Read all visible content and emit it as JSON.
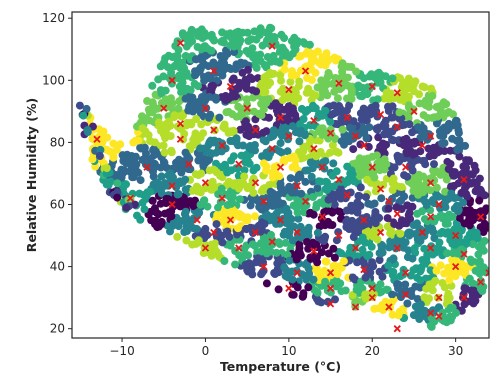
{
  "chart_data": {
    "type": "scatter",
    "title": "",
    "xlabel": "Temperature (°C)",
    "ylabel": "Relative Humidity (%)",
    "xlim": [
      -16,
      34
    ],
    "ylim": [
      17,
      122
    ],
    "xticks": [
      "−10",
      "0",
      "10",
      "20",
      "30"
    ],
    "yticks": [
      "20",
      "40",
      "60",
      "80",
      "100",
      "120"
    ],
    "xtick_values": [
      -10,
      0,
      10,
      20,
      30
    ],
    "ytick_values": [
      20,
      40,
      60,
      80,
      100,
      120
    ],
    "grid": false,
    "colormap": "viridis",
    "cluster_marker": "x",
    "cluster_marker_color": "#e41a1c",
    "point_cloud": {
      "description_hull_temperature": [
        -14,
        33
      ],
      "humidity_range": [
        20,
        118
      ],
      "left_tail": [
        [
          -14.5,
          90
        ],
        [
          -14,
          84
        ],
        [
          -13,
          76
        ],
        [
          -12,
          70
        ],
        [
          -11,
          65
        ],
        [
          -10,
          62
        ],
        [
          -9,
          60
        ]
      ]
    },
    "cluster_centers": [
      [
        -3,
        112
      ],
      [
        1,
        103
      ],
      [
        8,
        111
      ],
      [
        12,
        103
      ],
      [
        20,
        98
      ],
      [
        -4,
        100
      ],
      [
        3,
        98
      ],
      [
        10,
        97
      ],
      [
        16,
        99
      ],
      [
        23,
        96
      ],
      [
        -5,
        91
      ],
      [
        0,
        91
      ],
      [
        5,
        91
      ],
      [
        9,
        88
      ],
      [
        13,
        87
      ],
      [
        17,
        88
      ],
      [
        21,
        89
      ],
      [
        25,
        90
      ],
      [
        -3,
        86
      ],
      [
        1,
        84
      ],
      [
        6,
        84
      ],
      [
        10,
        82
      ],
      [
        15,
        83
      ],
      [
        18,
        82
      ],
      [
        23,
        85
      ],
      [
        27,
        82
      ],
      [
        -13,
        81
      ],
      [
        -3,
        81
      ],
      [
        2,
        79
      ],
      [
        8,
        78
      ],
      [
        13,
        78
      ],
      [
        19,
        79
      ],
      [
        26,
        79
      ],
      [
        -7,
        72
      ],
      [
        -2,
        73
      ],
      [
        4,
        73
      ],
      [
        9,
        72
      ],
      [
        14,
        72
      ],
      [
        20,
        72
      ],
      [
        24,
        72
      ],
      [
        -4,
        66
      ],
      [
        0,
        67
      ],
      [
        6,
        67
      ],
      [
        11,
        66
      ],
      [
        16,
        68
      ],
      [
        21,
        65
      ],
      [
        27,
        67
      ],
      [
        31,
        68
      ],
      [
        -9,
        62
      ],
      [
        -4,
        60
      ],
      [
        2,
        62
      ],
      [
        7,
        61
      ],
      [
        12,
        61
      ],
      [
        17,
        63
      ],
      [
        22,
        61
      ],
      [
        28,
        60
      ],
      [
        -1,
        55
      ],
      [
        3,
        55
      ],
      [
        9,
        55
      ],
      [
        14,
        56
      ],
      [
        19,
        55
      ],
      [
        23,
        57
      ],
      [
        27,
        56
      ],
      [
        33,
        56
      ],
      [
        1,
        51
      ],
      [
        6,
        51
      ],
      [
        11,
        51
      ],
      [
        16,
        50
      ],
      [
        21,
        51
      ],
      [
        26,
        51
      ],
      [
        30,
        50
      ],
      [
        0,
        46
      ],
      [
        4,
        46
      ],
      [
        8,
        48
      ],
      [
        13,
        45
      ],
      [
        18,
        46
      ],
      [
        23,
        46
      ],
      [
        27,
        46
      ],
      [
        31,
        44
      ],
      [
        7,
        40
      ],
      [
        11,
        38
      ],
      [
        15,
        38
      ],
      [
        19,
        39
      ],
      [
        24,
        38
      ],
      [
        30,
        40
      ],
      [
        34,
        38
      ],
      [
        10,
        33
      ],
      [
        15,
        33
      ],
      [
        20,
        33
      ],
      [
        24,
        31
      ],
      [
        28,
        30
      ],
      [
        33,
        35
      ],
      [
        15,
        28
      ],
      [
        18,
        27
      ],
      [
        22,
        27
      ],
      [
        27,
        25
      ],
      [
        31,
        30
      ],
      [
        23,
        20
      ],
      [
        28,
        24
      ],
      [
        20,
        30
      ]
    ]
  }
}
